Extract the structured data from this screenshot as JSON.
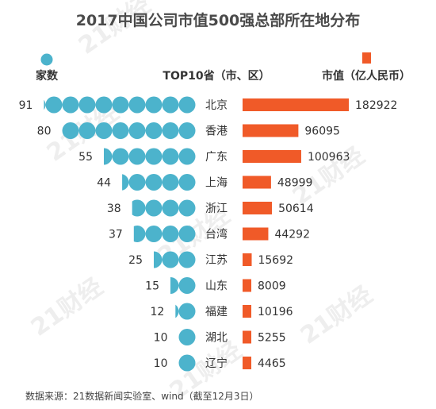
{
  "chart_data": {
    "type": "bar",
    "title": "2017中国公司市值500强总部所在地分布",
    "left_header": "家数",
    "center_header": "TOP10省（市、区）",
    "right_header": "市值（亿人民币）",
    "source": "数据来源：21数据新闻实验室、wind（截至12月3日）",
    "watermark": "21财经",
    "colors": {
      "count": "#4cb3cc",
      "value": "#f05a28"
    },
    "categories": [
      "北京",
      "香港",
      "广东",
      "上海",
      "浙江",
      "台湾",
      "江苏",
      "山东",
      "福建",
      "湖北",
      "辽宁"
    ],
    "series": [
      {
        "name": "家数",
        "values": [
          91,
          80,
          55,
          44,
          38,
          37,
          25,
          15,
          12,
          10,
          10
        ]
      },
      {
        "name": "市值（亿人民币）",
        "values": [
          182922,
          96095,
          100963,
          48999,
          50614,
          44292,
          15692,
          8009,
          10196,
          5255,
          4465
        ]
      }
    ]
  }
}
